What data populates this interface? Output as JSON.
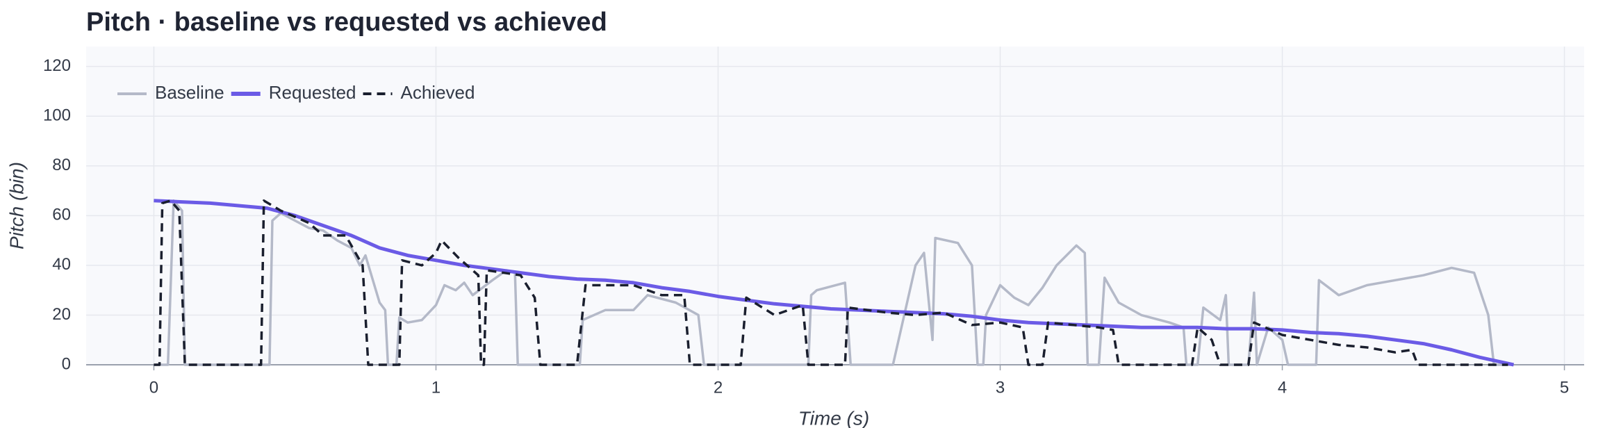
{
  "chart_data": {
    "type": "line",
    "title": "Pitch · baseline vs requested vs achieved",
    "x_label": "Time (s)",
    "y_label": "Pitch (bin)",
    "xlim": [
      -0.24,
      5.07
    ],
    "xticks": [
      0,
      1,
      2,
      3,
      4,
      5
    ],
    "ylim": [
      0,
      128
    ],
    "yticks": [
      0,
      20,
      40,
      60,
      80,
      100,
      120
    ],
    "grid": true,
    "legend": "top-left",
    "series": [
      {
        "name": "Baseline",
        "color": "#b4b9c8",
        "style": "solid",
        "x": [
          0.0,
          0.05,
          0.07,
          0.1,
          0.11,
          0.41,
          0.42,
          0.45,
          0.5,
          0.55,
          0.6,
          0.65,
          0.7,
          0.73,
          0.75,
          0.8,
          0.82,
          0.83,
          0.86,
          0.87,
          0.9,
          0.95,
          1.0,
          1.03,
          1.07,
          1.1,
          1.13,
          1.2,
          1.25,
          1.28,
          1.29,
          1.51,
          1.52,
          1.6,
          1.7,
          1.75,
          1.85,
          1.93,
          1.95,
          2.32,
          2.33,
          2.35,
          2.45,
          2.47,
          2.62,
          2.7,
          2.73,
          2.76,
          2.77,
          2.85,
          2.9,
          2.92,
          2.94,
          2.95,
          3.0,
          3.05,
          3.1,
          3.15,
          3.2,
          3.27,
          3.3,
          3.31,
          3.35,
          3.37,
          3.42,
          3.5,
          3.6,
          3.65,
          3.66,
          3.7,
          3.72,
          3.78,
          3.8,
          3.81,
          3.88,
          3.9,
          3.91,
          3.95,
          4.0,
          4.02,
          4.12,
          4.13,
          4.2,
          4.3,
          4.4,
          4.5,
          4.6,
          4.68,
          4.73,
          4.75,
          4.82
        ],
        "values": [
          0,
          0,
          66,
          62,
          0,
          0,
          58,
          61,
          58,
          55,
          54,
          50,
          47,
          40,
          44,
          25,
          22,
          0,
          0,
          19,
          17,
          18,
          24,
          32,
          30,
          33,
          28,
          34,
          38,
          37,
          0,
          0,
          18,
          22,
          22,
          28,
          25,
          20,
          0,
          0,
          28,
          30,
          33,
          0,
          0,
          40,
          45,
          10,
          51,
          49,
          40,
          0,
          0,
          20,
          32,
          27,
          24,
          31,
          40,
          48,
          45,
          0,
          0,
          35,
          25,
          20,
          17,
          15,
          0,
          0,
          23,
          18,
          28,
          0,
          0,
          29,
          0,
          15,
          10,
          0,
          0,
          34,
          28,
          32,
          34,
          36,
          39,
          37,
          20,
          0,
          0
        ]
      },
      {
        "name": "Requested",
        "color": "#6b5be6",
        "style": "solid",
        "x": [
          0,
          0.1,
          0.2,
          0.3,
          0.4,
          0.5,
          0.6,
          0.7,
          0.8,
          0.9,
          1.0,
          1.1,
          1.2,
          1.3,
          1.4,
          1.5,
          1.6,
          1.7,
          1.8,
          1.9,
          2.0,
          2.1,
          2.2,
          2.3,
          2.4,
          2.5,
          2.6,
          2.7,
          2.8,
          2.9,
          3.0,
          3.1,
          3.2,
          3.3,
          3.4,
          3.5,
          3.6,
          3.7,
          3.8,
          3.9,
          4.0,
          4.1,
          4.2,
          4.3,
          4.4,
          4.5,
          4.6,
          4.7,
          4.8,
          4.82
        ],
        "values": [
          66,
          65.5,
          65,
          64,
          63,
          60,
          56,
          52,
          47,
          44,
          42,
          40,
          38.5,
          37,
          35.5,
          34.5,
          34,
          33,
          31,
          29.5,
          27.5,
          26,
          24.5,
          23.5,
          22.5,
          22,
          21.5,
          21,
          20.5,
          19.5,
          18,
          17,
          16.5,
          16,
          15.5,
          15,
          15,
          15,
          14.5,
          14.5,
          14,
          13,
          12.5,
          11.5,
          10,
          8.5,
          6,
          3,
          0.5,
          0
        ]
      },
      {
        "name": "Achieved",
        "color": "#1a1f2e",
        "style": "dashed",
        "x": [
          0.0,
          0.02,
          0.03,
          0.06,
          0.09,
          0.11,
          0.38,
          0.39,
          0.45,
          0.55,
          0.6,
          0.68,
          0.74,
          0.76,
          0.87,
          0.88,
          0.95,
          1.0,
          1.02,
          1.08,
          1.15,
          1.16,
          1.17,
          1.18,
          1.3,
          1.35,
          1.37,
          1.5,
          1.53,
          1.7,
          1.8,
          1.88,
          1.9,
          2.08,
          2.1,
          2.2,
          2.3,
          2.32,
          2.45,
          2.46,
          2.6,
          2.7,
          2.8,
          2.9,
          3.0,
          3.08,
          3.1,
          3.15,
          3.17,
          3.35,
          3.4,
          3.42,
          3.68,
          3.7,
          3.75,
          3.78,
          3.88,
          3.9,
          4.0,
          4.1,
          4.2,
          4.3,
          4.4,
          4.46,
          4.48,
          4.8
        ],
        "values": [
          0,
          0,
          65,
          66,
          62,
          0,
          0,
          66,
          62,
          57,
          52,
          52,
          40,
          0,
          0,
          42,
          40,
          45,
          50,
          43,
          36,
          0,
          0,
          38,
          36,
          27,
          0,
          0,
          32,
          32,
          28,
          28,
          0,
          0,
          27,
          20,
          24,
          0,
          0,
          23,
          21,
          20,
          21,
          16,
          17,
          15,
          0,
          0,
          17,
          15,
          14,
          0,
          0,
          15,
          10,
          0,
          0,
          17,
          12,
          10,
          8,
          7,
          5,
          6,
          0,
          0
        ]
      }
    ]
  }
}
